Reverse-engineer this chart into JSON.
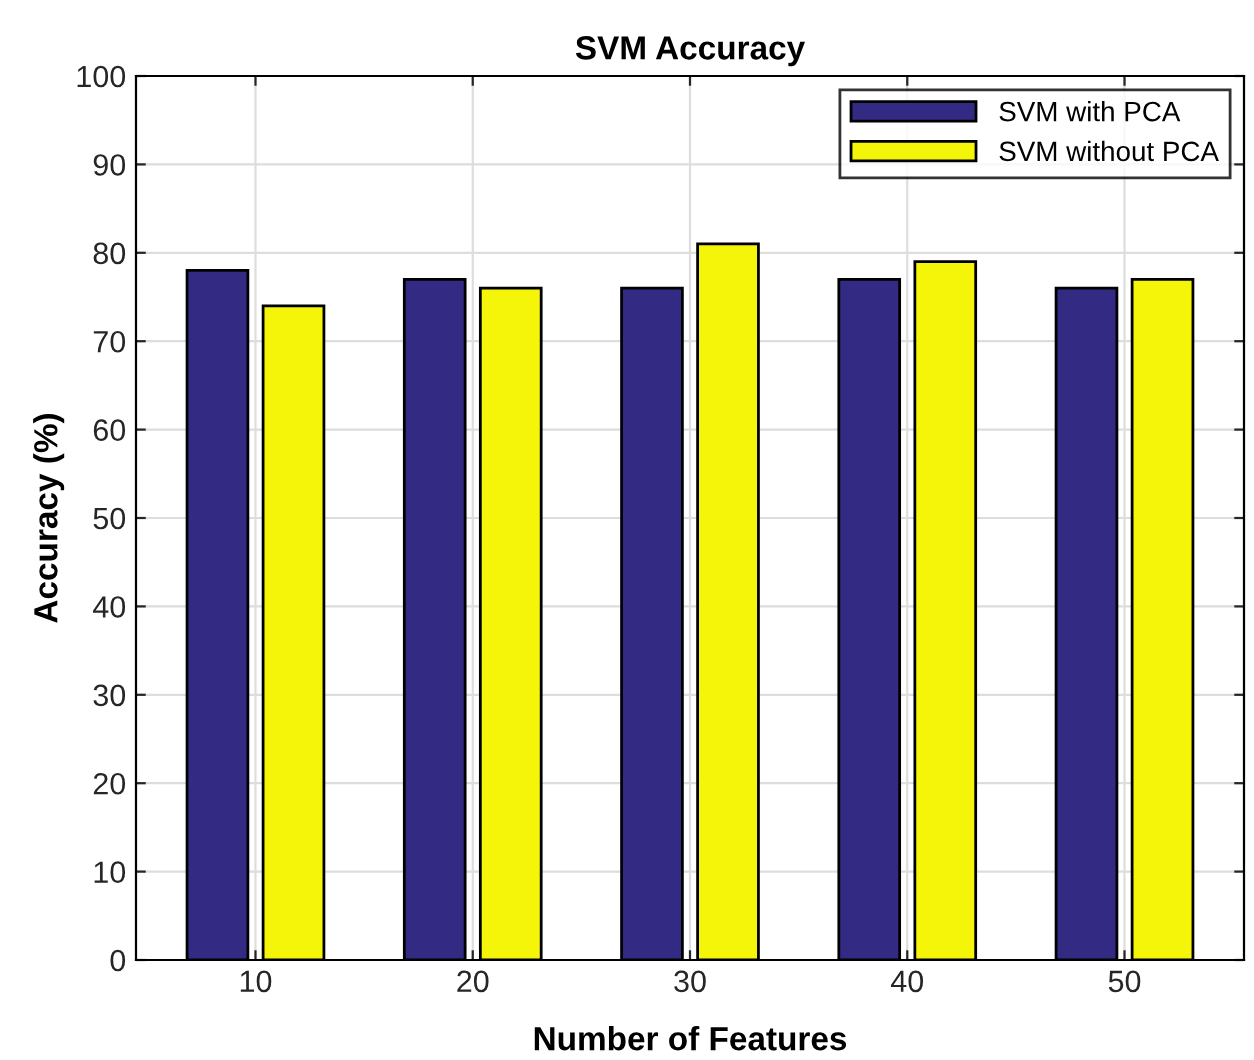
{
  "chart_data": {
    "type": "bar",
    "title": "SVM Accuracy",
    "xlabel": "Number of Features",
    "ylabel": "Accuracy (%)",
    "categories": [
      "10",
      "20",
      "30",
      "40",
      "50"
    ],
    "series": [
      {
        "name": "SVM with PCA",
        "color": "#332a84",
        "values": [
          78,
          77,
          76,
          77,
          76
        ]
      },
      {
        "name": "SVM without PCA",
        "color": "#f5f50a",
        "values": [
          74,
          76,
          81,
          79,
          77
        ]
      }
    ],
    "ylim": [
      0,
      100
    ],
    "yticks": [
      0,
      10,
      20,
      30,
      40,
      50,
      60,
      70,
      80,
      90,
      100
    ],
    "grid": true,
    "legend": "top right"
  }
}
